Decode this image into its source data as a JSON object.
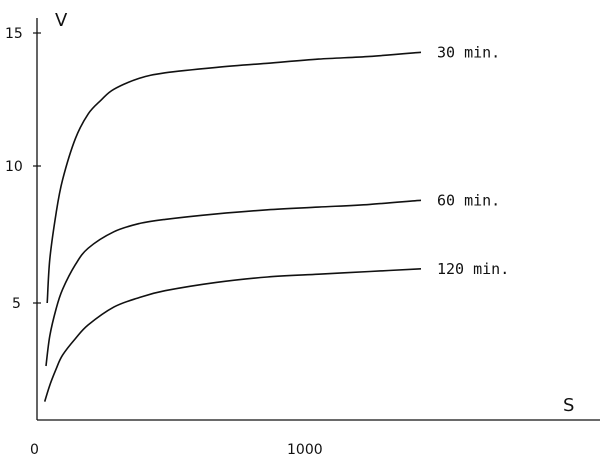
{
  "chart_data": {
    "type": "line",
    "xlabel": "S",
    "ylabel": "V",
    "xlim": [
      0,
      2000
    ],
    "ylim": [
      0,
      15.5
    ],
    "x_ticks": [
      0,
      1000
    ],
    "y_ticks": [
      5,
      10,
      15
    ],
    "grid": false,
    "legend": "inline labels at line ends",
    "series": [
      {
        "name": "30 min.",
        "x": [
          40,
          50,
          75,
          100,
          150,
          200,
          250,
          300,
          400,
          500,
          700,
          900,
          1100,
          1300,
          1500
        ],
        "y": [
          5.0,
          6.6,
          8.3,
          9.5,
          11.0,
          11.9,
          12.4,
          12.8,
          13.2,
          13.4,
          13.6,
          13.75,
          13.9,
          14.0,
          14.15
        ]
      },
      {
        "name": "60 min.",
        "x": [
          35,
          50,
          75,
          100,
          150,
          200,
          300,
          400,
          500,
          700,
          900,
          1100,
          1300,
          1500
        ],
        "y": [
          2.7,
          3.8,
          4.8,
          5.5,
          6.4,
          7.0,
          7.6,
          7.9,
          8.05,
          8.25,
          8.4,
          8.5,
          8.6,
          8.75
        ]
      },
      {
        "name": "120 min.",
        "x": [
          30,
          50,
          75,
          100,
          150,
          200,
          300,
          400,
          500,
          700,
          900,
          1100,
          1300,
          1500
        ],
        "y": [
          1.4,
          2.0,
          2.6,
          3.1,
          3.7,
          4.2,
          4.85,
          5.2,
          5.45,
          5.75,
          5.95,
          6.05,
          6.15,
          6.25
        ]
      }
    ]
  }
}
